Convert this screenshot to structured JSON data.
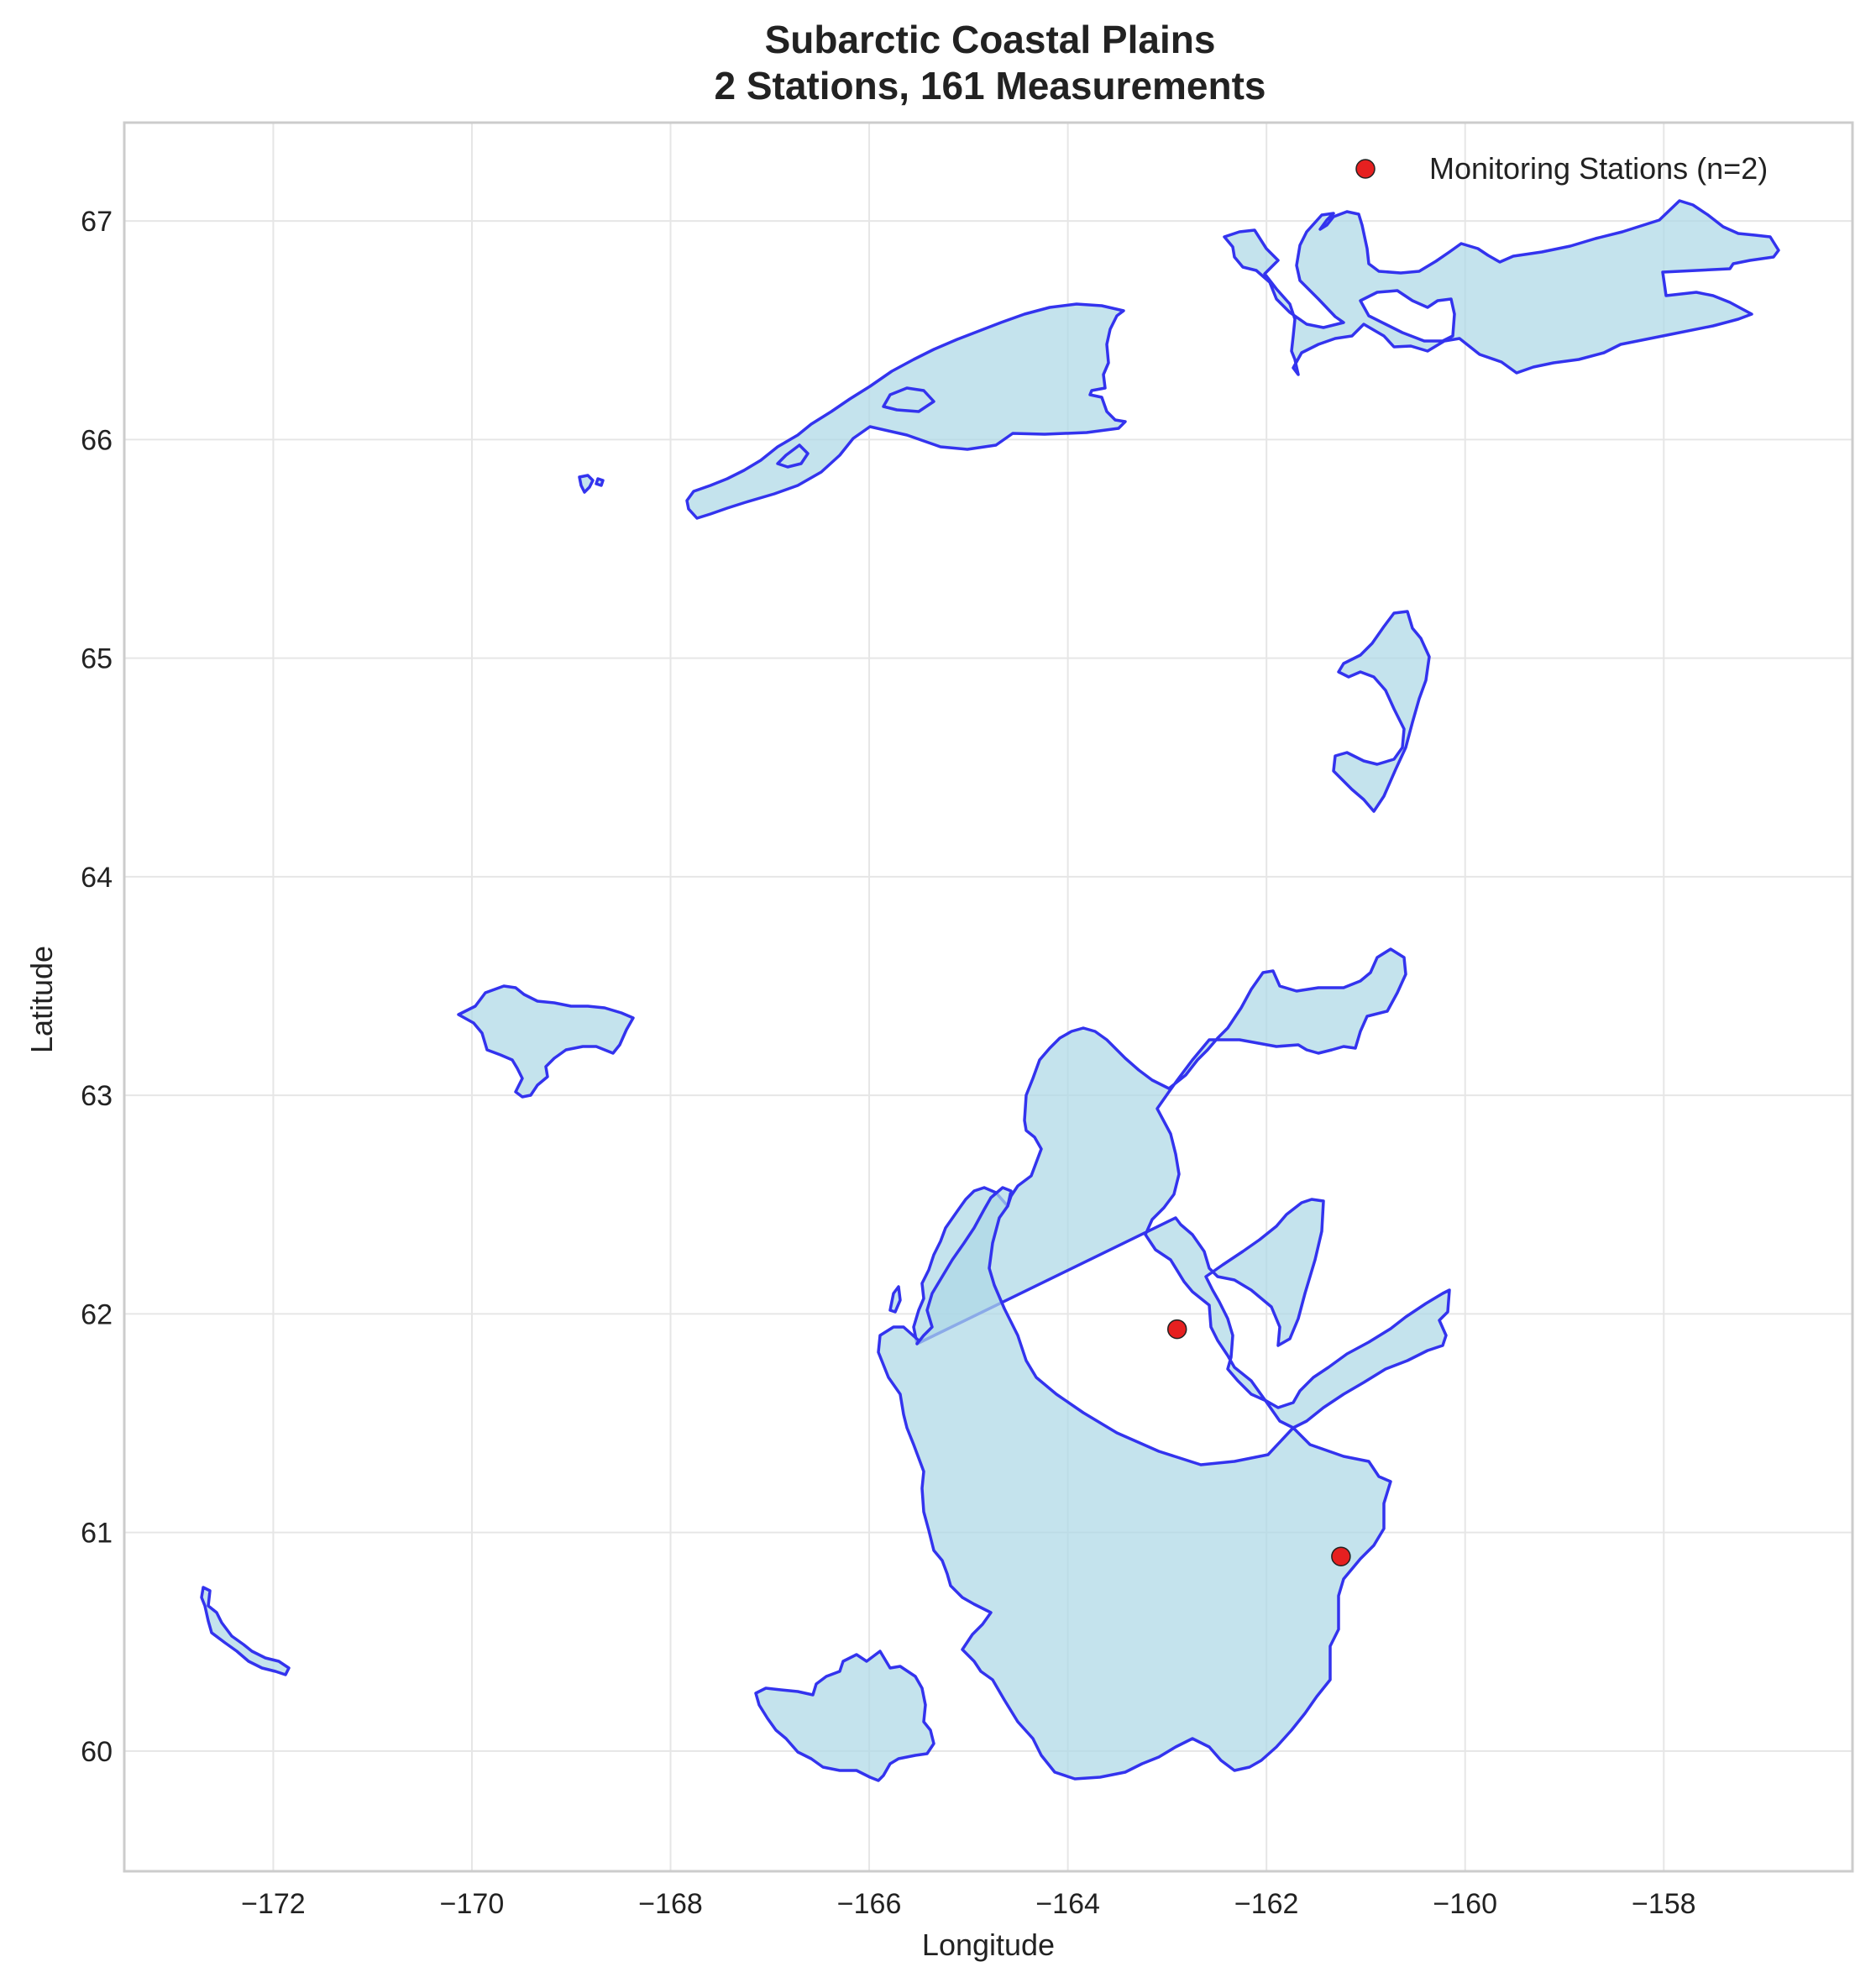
{
  "title_line1": "Subarctic Coastal Plains",
  "title_line2": "2 Stations, 161 Measurements",
  "xlabel": "Longitude",
  "ylabel": "Latitude",
  "legend_label": "Monitoring Stations (n=2)",
  "colors": {
    "land_fill": "#add8e6",
    "land_edge": "#3333ee",
    "station": "#e62020",
    "grid": "#e6e6e6",
    "frame": "#cccccc"
  },
  "chart_data": {
    "type": "scatter",
    "title": "Subarctic Coastal Plains\n2 Stations, 161 Measurements",
    "xlabel": "Longitude",
    "ylabel": "Latitude",
    "xlim": [
      -173.5,
      -156.1
    ],
    "ylim": [
      59.45,
      67.45
    ],
    "x_ticks": [
      -172,
      -170,
      -168,
      -166,
      -164,
      -162,
      -160,
      -158
    ],
    "x_tick_labels": [
      "−172",
      "−170",
      "−168",
      "−166",
      "−164",
      "−162",
      "−160",
      "−158"
    ],
    "y_ticks": [
      60,
      61,
      62,
      63,
      64,
      65,
      66,
      67
    ],
    "y_tick_labels": [
      "60",
      "61",
      "62",
      "63",
      "64",
      "65",
      "66",
      "67"
    ],
    "grid": true,
    "legend_position": "top-right",
    "series": [
      {
        "name": "Monitoring Stations (n=2)",
        "x": [
          -162.9,
          -161.25
        ],
        "y": [
          61.93,
          60.89
        ]
      }
    ]
  }
}
